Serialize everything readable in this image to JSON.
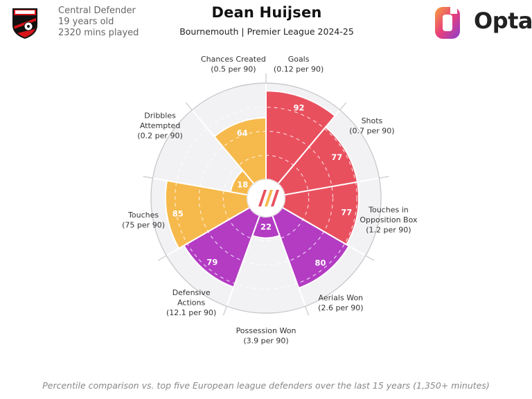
{
  "player": {
    "name": "Dean Huijsen",
    "position": "Central Defender",
    "age": "19 years old",
    "minutes": "2320 mins played",
    "subtitle": "Bournemouth | Premier League 2024-25"
  },
  "brand": {
    "name": "Opta"
  },
  "footnote": "Percentile comparison vs. top five European league defenders over the last 15 years (1,350+ minutes)",
  "colors": {
    "attacking": "#E9505E",
    "possession": "#F6B94C",
    "defending": "#B33CC3",
    "background_sector": "#F2F2F4",
    "grid": "#C8C8CC"
  },
  "chart_data": {
    "type": "radar-bar",
    "scale": [
      0,
      100
    ],
    "metrics": [
      {
        "label": [
          "Goals",
          "(0.12 per 90)"
        ],
        "value": 92,
        "group": "attacking"
      },
      {
        "label": [
          "Shots",
          "(0.7 per 90)"
        ],
        "value": 77,
        "group": "attacking"
      },
      {
        "label": [
          "Touches in",
          "Opposition Box",
          "(1.2 per 90)"
        ],
        "value": 77,
        "group": "attacking"
      },
      {
        "label": [
          "Aerials Won",
          "(2.6 per 90)"
        ],
        "value": 80,
        "group": "defending"
      },
      {
        "label": [
          "Possession Won",
          "(3.9 per 90)"
        ],
        "value": 22,
        "group": "defending"
      },
      {
        "label": [
          "Defensive",
          "Actions",
          "(12.1 per 90)"
        ],
        "value": 79,
        "group": "defending"
      },
      {
        "label": [
          "Touches",
          "(75 per 90)"
        ],
        "value": 85,
        "group": "possession"
      },
      {
        "label": [
          "Dribbles",
          "Attempted",
          "(0.2 per 90)"
        ],
        "value": 18,
        "group": "possession"
      },
      {
        "label": [
          "Chances Created",
          "(0.5 per 90)"
        ],
        "value": 64,
        "group": "possession"
      }
    ]
  }
}
